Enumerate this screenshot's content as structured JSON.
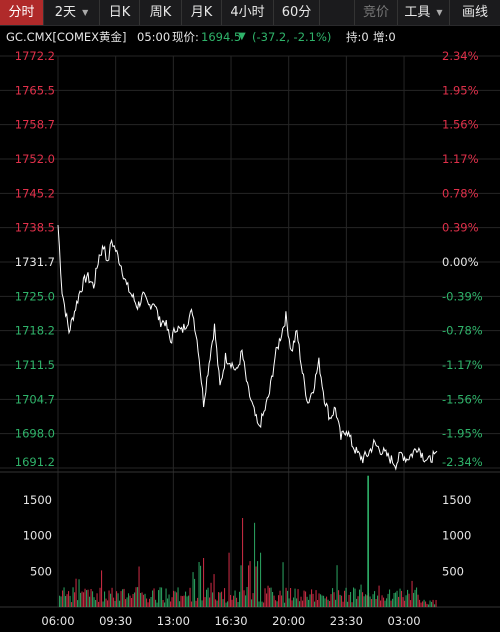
{
  "toolbar": {
    "tabs": [
      {
        "label": "分时",
        "active": true
      },
      {
        "label": "2天",
        "dropdown": true
      },
      {
        "label": "日K"
      },
      {
        "label": "周K"
      },
      {
        "label": "月K"
      },
      {
        "label": "4小时"
      },
      {
        "label": "60分"
      }
    ],
    "right": [
      {
        "label": "竞价",
        "disabled": true
      },
      {
        "label": "工具",
        "dropdown": true
      },
      {
        "label": "画线"
      }
    ]
  },
  "quote": {
    "symbol": "GC.CMX[COMEX黄金]",
    "time": "05:00",
    "price_label": "现价:",
    "price": "1694.5",
    "change": "(-37.2, -2.1%)",
    "hold": "持:0",
    "increase": "增:0"
  },
  "colors": {
    "up": "#e0304a",
    "down": "#2fb36a",
    "line": "#ffffff",
    "neutral": "#e6e6e6"
  },
  "chart_data": {
    "type": "line",
    "price_axis": [
      "1772.2",
      "1765.5",
      "1758.7",
      "1752.0",
      "1745.2",
      "1738.5",
      "1731.7",
      "1725.0",
      "1718.2",
      "1711.5",
      "1704.7",
      "1698.0",
      "1691.2"
    ],
    "pct_axis": [
      "2.34%",
      "1.95%",
      "1.56%",
      "1.17%",
      "0.78%",
      "0.39%",
      "0.00%",
      "-0.39%",
      "-0.78%",
      "-1.17%",
      "-1.56%",
      "-1.95%",
      "-2.34%"
    ],
    "prev_close": 1731.7,
    "ylim": [
      1691.2,
      1772.2
    ],
    "x_ticks": [
      "06:00",
      "09:30",
      "13:00",
      "16:30",
      "20:00",
      "23:30",
      "03:00"
    ],
    "price_series": [
      [
        "06:00",
        1739
      ],
      [
        "06:15",
        1726
      ],
      [
        "06:40",
        1718
      ],
      [
        "07:00",
        1722
      ],
      [
        "07:20",
        1726
      ],
      [
        "07:45",
        1729
      ],
      [
        "08:10",
        1727
      ],
      [
        "08:30",
        1733
      ],
      [
        "08:50",
        1735
      ],
      [
        "09:00",
        1731
      ],
      [
        "09:15",
        1736
      ],
      [
        "09:30",
        1734
      ],
      [
        "09:50",
        1731
      ],
      [
        "10:10",
        1727
      ],
      [
        "10:30",
        1725
      ],
      [
        "10:50",
        1723
      ],
      [
        "11:10",
        1725
      ],
      [
        "11:30",
        1723
      ],
      [
        "11:50",
        1724
      ],
      [
        "12:10",
        1720
      ],
      [
        "12:30",
        1720
      ],
      [
        "12:50",
        1716
      ],
      [
        "13:10",
        1719
      ],
      [
        "13:30",
        1718
      ],
      [
        "13:50",
        1720
      ],
      [
        "14:10",
        1722
      ],
      [
        "14:30",
        1715
      ],
      [
        "14:50",
        1704
      ],
      [
        "15:10",
        1712
      ],
      [
        "15:30",
        1719
      ],
      [
        "15:50",
        1707
      ],
      [
        "16:10",
        1713
      ],
      [
        "16:30",
        1712
      ],
      [
        "16:50",
        1710
      ],
      [
        "17:10",
        1714
      ],
      [
        "17:30",
        1707
      ],
      [
        "17:50",
        1703
      ],
      [
        "18:10",
        1699
      ],
      [
        "18:30",
        1702
      ],
      [
        "18:50",
        1706
      ],
      [
        "19:10",
        1713
      ],
      [
        "19:30",
        1717
      ],
      [
        "19:50",
        1721
      ],
      [
        "20:10",
        1714
      ],
      [
        "20:30",
        1718
      ],
      [
        "20:50",
        1710
      ],
      [
        "21:10",
        1704
      ],
      [
        "21:30",
        1707
      ],
      [
        "21:50",
        1712
      ],
      [
        "22:10",
        1705
      ],
      [
        "22:30",
        1701
      ],
      [
        "22:50",
        1703
      ],
      [
        "23:10",
        1697
      ],
      [
        "23:30",
        1699
      ],
      [
        "23:50",
        1696
      ],
      [
        "00:10",
        1694
      ],
      [
        "00:30",
        1693
      ],
      [
        "00:50",
        1694
      ],
      [
        "01:10",
        1696
      ],
      [
        "01:30",
        1695
      ],
      [
        "01:50",
        1694
      ],
      [
        "02:10",
        1693
      ],
      [
        "02:30",
        1692
      ],
      [
        "02:50",
        1694
      ],
      [
        "03:10",
        1693
      ],
      [
        "03:30",
        1694
      ],
      [
        "03:50",
        1695.5
      ],
      [
        "04:10",
        1693.5
      ],
      [
        "04:30",
        1692.5
      ],
      [
        "04:50",
        1694
      ],
      [
        "05:00",
        1694.5
      ]
    ],
    "volume_axis": [
      "1500",
      "1000",
      "500"
    ],
    "volume_ylim": [
      0,
      1850
    ],
    "volume_peak": {
      "time": "00:50",
      "value": 1840,
      "color": "down"
    }
  }
}
